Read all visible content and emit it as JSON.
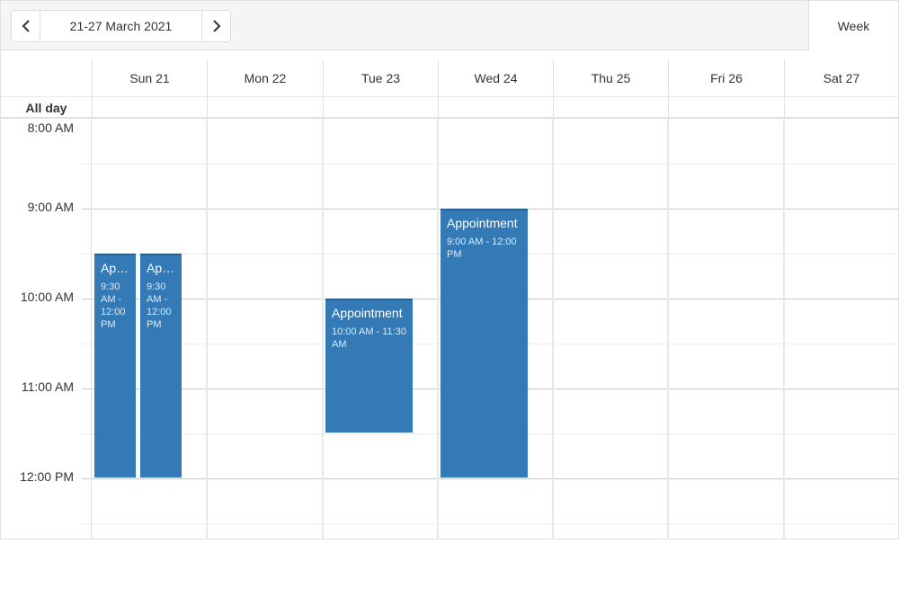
{
  "toolbar": {
    "date_range": "21-27 March 2021",
    "prev_icon": "chevron-left-icon",
    "next_icon": "chevron-right-icon",
    "view_label": "Week"
  },
  "days": [
    {
      "label": "Sun 21"
    },
    {
      "label": "Mon 22"
    },
    {
      "label": "Tue 23"
    },
    {
      "label": "Wed 24"
    },
    {
      "label": "Thu 25"
    },
    {
      "label": "Fri 26"
    },
    {
      "label": "Sat 27"
    }
  ],
  "all_day_label": "All day",
  "times": [
    "8:00 AM",
    "9:00 AM",
    "10:00 AM",
    "11:00 AM",
    "12:00 PM"
  ],
  "appointments": [
    {
      "title": "Appointment",
      "time": "9:30 AM - 12:00 PM"
    },
    {
      "title": "Appointment",
      "time": "9:30 AM - 12:00 PM"
    },
    {
      "title": "Appointment",
      "time": "10:00 AM - 11:30 AM"
    },
    {
      "title": "Appointment",
      "time": "9:00 AM - 12:00 PM"
    }
  ],
  "colors": {
    "appointment": "#337ab7",
    "toolbar_bg": "#f5f5f5"
  }
}
